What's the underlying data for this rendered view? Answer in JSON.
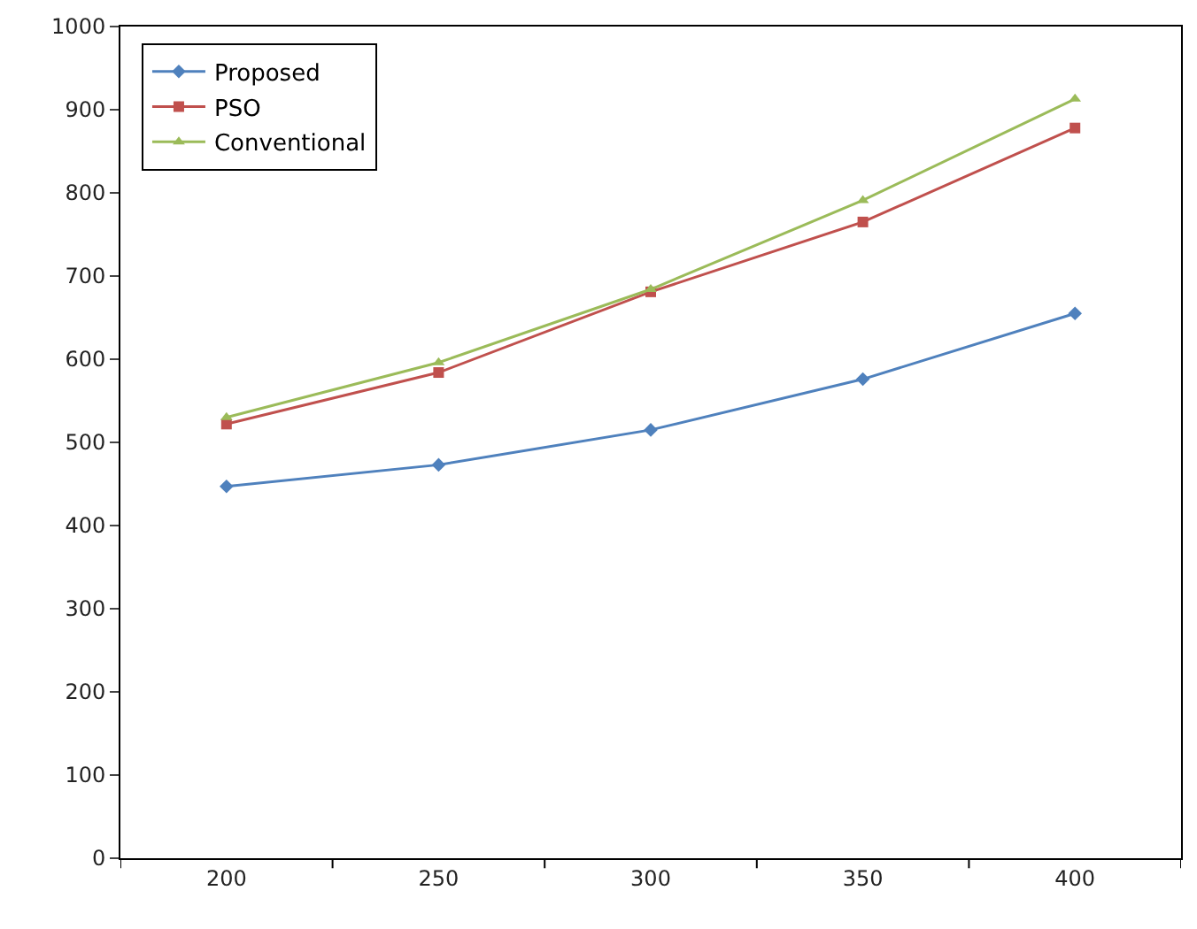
{
  "chart_data": {
    "type": "line",
    "categories": [
      "200",
      "250",
      "300",
      "350",
      "400"
    ],
    "series": [
      {
        "name": "Proposed",
        "color": "#4f81bd",
        "marker": "diamond",
        "values": [
          447,
          473,
          515,
          576,
          655
        ]
      },
      {
        "name": "PSO",
        "color": "#c0504d",
        "marker": "square",
        "values": [
          522,
          584,
          681,
          765,
          878
        ]
      },
      {
        "name": "Conventional",
        "color": "#9bbb59",
        "marker": "triangle",
        "values": [
          530,
          596,
          684,
          791,
          913
        ]
      }
    ],
    "ylim": [
      0,
      1000
    ],
    "yticks": [
      0,
      100,
      200,
      300,
      400,
      500,
      600,
      700,
      800,
      900,
      1000
    ],
    "grid": false,
    "legend": "top left"
  }
}
